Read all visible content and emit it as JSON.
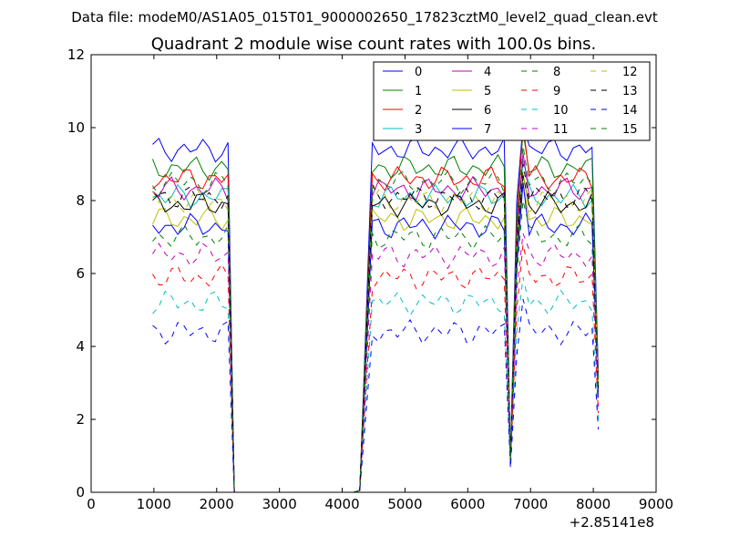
{
  "figure": {
    "suptitle": "Data file: modeM0/AS1A05_015T01_9000002650_17823cztM0_level2_quad_clean.evt"
  },
  "chart_data": {
    "type": "line",
    "title": "Quadrant 2 module wise count rates with 100.0s bins.",
    "xlabel": "",
    "ylabel": "",
    "x_offset_label": "+2.85141e8",
    "xlim": [
      0,
      9000
    ],
    "ylim": [
      0,
      12
    ],
    "xticks": [
      0,
      1000,
      2000,
      3000,
      4000,
      5000,
      6000,
      7000,
      8000,
      9000
    ],
    "xtick_labels": [
      "0",
      "1000",
      "2000",
      "3000",
      "4000",
      "5000",
      "6000",
      "7000",
      "8000",
      "9000"
    ],
    "yticks": [
      0,
      2,
      4,
      6,
      8,
      10,
      12
    ],
    "ytick_labels": [
      "0",
      "2",
      "4",
      "6",
      "8",
      "10",
      "12"
    ],
    "grid": false,
    "legend": {
      "placement": "top-right",
      "columns": 4
    },
    "x": [
      980,
      1080,
      1180,
      1280,
      1380,
      1480,
      1580,
      1680,
      1780,
      1880,
      1980,
      2080,
      2180,
      2280,
      2380,
      2480,
      2580,
      2680,
      2780,
      2880,
      2980,
      3080,
      3180,
      3280,
      3380,
      3480,
      3580,
      3680,
      3780,
      3880,
      3980,
      4080,
      4180,
      4280,
      4380,
      4480,
      4580,
      4680,
      4780,
      4880,
      4980,
      5080,
      5180,
      5280,
      5380,
      5480,
      5580,
      5680,
      5780,
      5880,
      5980,
      6080,
      6180,
      6280,
      6380,
      6480,
      6580,
      6680,
      6780,
      6880,
      6980,
      7080,
      7180,
      7280,
      7380,
      7480,
      7580,
      7680,
      7780,
      7880,
      7980,
      8080
    ],
    "series": [
      {
        "name": "0",
        "style": "solid",
        "color": "#0000ff",
        "level": 9.4,
        "peak": 9.6
      },
      {
        "name": "1",
        "style": "solid",
        "color": "#008000",
        "level": 8.9,
        "peak": 9.4
      },
      {
        "name": "2",
        "style": "solid",
        "color": "#ff0000",
        "level": 8.6,
        "peak": 9.6
      },
      {
        "name": "3",
        "style": "solid",
        "color": "#00bfbf",
        "level": 8.1,
        "peak": 8.6
      },
      {
        "name": "4",
        "style": "solid",
        "color": "#bf00bf",
        "level": 8.3,
        "peak": 8.8
      },
      {
        "name": "5",
        "style": "solid",
        "color": "#bfbf00",
        "level": 7.5,
        "peak": 8.0
      },
      {
        "name": "6",
        "style": "solid",
        "color": "#000000",
        "level": 7.9,
        "peak": 8.2
      },
      {
        "name": "7",
        "style": "solid",
        "color": "#0000ff",
        "level": 7.3,
        "peak": 8.0
      },
      {
        "name": "8",
        "style": "dashed",
        "color": "#008000",
        "level": 7.0,
        "peak": 7.5
      },
      {
        "name": "9",
        "style": "dashed",
        "color": "#ff0000",
        "level": 5.9,
        "peak": 6.3
      },
      {
        "name": "10",
        "style": "dashed",
        "color": "#00bfbf",
        "level": 5.2,
        "peak": 5.4
      },
      {
        "name": "11",
        "style": "dashed",
        "color": "#bf00bf",
        "level": 6.5,
        "peak": 6.6
      },
      {
        "name": "12",
        "style": "dashed",
        "color": "#bfbf00",
        "level": 8.0,
        "peak": 8.3
      },
      {
        "name": "13",
        "style": "dashed",
        "color": "#000000",
        "level": 8.1,
        "peak": 8.5
      },
      {
        "name": "14",
        "style": "dashed",
        "color": "#0000ff",
        "level": 4.4,
        "peak": 4.8
      },
      {
        "name": "15",
        "style": "dashed",
        "color": "#008000",
        "level": 8.5,
        "peak": 9.0
      }
    ]
  }
}
